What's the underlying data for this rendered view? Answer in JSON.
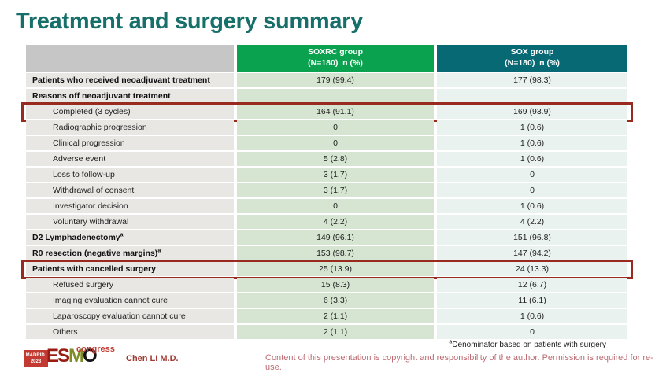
{
  "slide": {
    "title": "Treatment and surgery summary",
    "presenter": "Chen LI M.D.",
    "footnote_sup": "a",
    "footnote_text": "Denominator based on patients with surgery",
    "copyright": "Content of this presentation is copyright and responsibility of the author.  Permission is required for re-use."
  },
  "logo": {
    "location": "MADRID.",
    "year": "2023",
    "letters": [
      "E",
      "S",
      "M",
      "O"
    ],
    "congress": "congress"
  },
  "table": {
    "columns": [
      {
        "name": "",
        "sub": ""
      },
      {
        "name": "SOXRC group",
        "sub": "(N=180)  n (%)"
      },
      {
        "name": "SOX group",
        "sub": "(N=180)  n (%)"
      }
    ],
    "rows": [
      {
        "label": "Patients who received neoadjuvant treatment",
        "bold": true,
        "indent": false,
        "soxrc": "179 (99.4)",
        "sox": "177 (98.3)",
        "highlighted": false
      },
      {
        "label": "Reasons off neoadjuvant treatment",
        "bold": true,
        "indent": false,
        "soxrc": "",
        "sox": "",
        "highlighted": false
      },
      {
        "label": "Completed (3 cycles)",
        "bold": false,
        "indent": true,
        "soxrc": "164 (91.1)",
        "sox": "169 (93.9)",
        "highlighted": true
      },
      {
        "label": "Radiographic progression",
        "bold": false,
        "indent": true,
        "soxrc": "0",
        "sox": "1 (0.6)",
        "highlighted": false
      },
      {
        "label": "Clinical progression",
        "bold": false,
        "indent": true,
        "soxrc": "0",
        "sox": "1 (0.6)",
        "highlighted": false
      },
      {
        "label": "Adverse event",
        "bold": false,
        "indent": true,
        "soxrc": "5 (2.8)",
        "sox": "1 (0.6)",
        "highlighted": false
      },
      {
        "label": "Loss to follow-up",
        "bold": false,
        "indent": true,
        "soxrc": "3 (1.7)",
        "sox": "0",
        "highlighted": false
      },
      {
        "label": "Withdrawal of consent",
        "bold": false,
        "indent": true,
        "soxrc": "3 (1.7)",
        "sox": "0",
        "highlighted": false
      },
      {
        "label": "Investigator decision",
        "bold": false,
        "indent": true,
        "soxrc": "0",
        "sox": "1 (0.6)",
        "highlighted": false
      },
      {
        "label": "Voluntary withdrawal",
        "bold": false,
        "indent": true,
        "soxrc": "4 (2.2)",
        "sox": "4 (2.2)",
        "highlighted": false
      },
      {
        "label": "D2 Lymphadenectomy",
        "sup": "a",
        "bold": true,
        "indent": false,
        "soxrc": "149 (96.1)",
        "sox": "151 (96.8)",
        "highlighted": false
      },
      {
        "label": "R0 resection (negative margins)",
        "sup": "a",
        "bold": true,
        "indent": false,
        "soxrc": "153 (98.7)",
        "sox": "147 (94.2)",
        "highlighted": false
      },
      {
        "label": "Patients with cancelled surgery",
        "bold": true,
        "indent": false,
        "soxrc": "25 (13.9)",
        "sox": "24 (13.3)",
        "highlighted": true
      },
      {
        "label": "Refused surgery",
        "bold": false,
        "indent": true,
        "soxrc": "15 (8.3)",
        "sox": "12 (6.7)",
        "highlighted": false
      },
      {
        "label": "Imaging evaluation cannot cure",
        "bold": false,
        "indent": true,
        "soxrc": "6 (3.3)",
        "sox": "11 (6.1)",
        "highlighted": false
      },
      {
        "label": "Laparoscopy evaluation cannot cure",
        "bold": false,
        "indent": true,
        "soxrc": "2 (1.1)",
        "sox": "1 (0.6)",
        "highlighted": false
      },
      {
        "label": "Others",
        "bold": false,
        "indent": true,
        "soxrc": "2 (1.1)",
        "sox": "0",
        "highlighted": false
      }
    ]
  },
  "colors": {
    "title_teal": "#176f6a",
    "soxrc_green": "#0aa24e",
    "sox_teal": "#076974",
    "label_header_gray": "#c6c6c6",
    "label_cell_gray": "#e9e7e4",
    "soxrc_cell_green": "#d6e5d1",
    "sox_cell_tint": "#eaf2f0",
    "highlight_red": "#992a20",
    "logo_red": "#c23a31",
    "copyright_pink": "#bb6b72"
  }
}
